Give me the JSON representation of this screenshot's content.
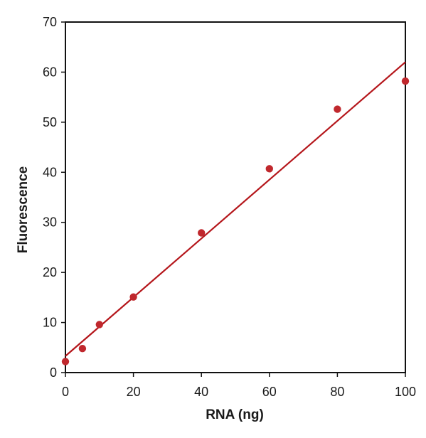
{
  "chart_data": {
    "type": "scatter",
    "title": "",
    "xlabel": "RNA (ng)",
    "ylabel": "Fluorescence",
    "xlim": [
      0,
      100
    ],
    "ylim": [
      0,
      70
    ],
    "x_ticks": [
      0,
      20,
      40,
      60,
      80,
      100
    ],
    "y_ticks": [
      0,
      10,
      20,
      30,
      40,
      50,
      60,
      70
    ],
    "grid": false,
    "legend": "none",
    "series": [
      {
        "marker_color": "#c0282d",
        "x": [
          0,
          5,
          10,
          20,
          40,
          60,
          80,
          100
        ],
        "y": [
          2.2,
          4.8,
          9.6,
          15.1,
          27.9,
          40.7,
          52.6,
          58.2
        ]
      }
    ],
    "trendline": {
      "kind": "linear",
      "color": "#b5161b",
      "x": [
        0,
        100
      ],
      "y": [
        3.3,
        62.0
      ]
    }
  }
}
